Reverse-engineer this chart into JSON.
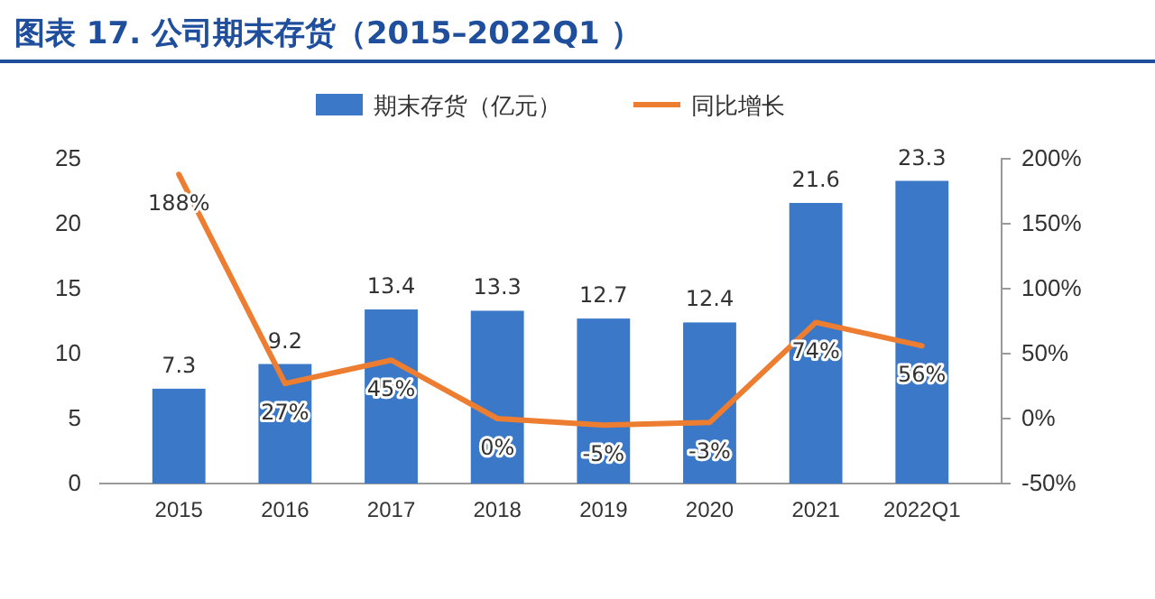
{
  "chart_data": {
    "type": "bar",
    "title": "图表 17. 公司期末存货（2015–2022Q1 ）",
    "categories": [
      "2015",
      "2016",
      "2017",
      "2018",
      "2019",
      "2020",
      "2021",
      "2022Q1"
    ],
    "series": [
      {
        "name": "期末存货（亿元）",
        "color": "#3b78c8",
        "values": [
          7.3,
          9.2,
          13.4,
          13.3,
          12.7,
          12.4,
          21.6,
          23.3
        ]
      },
      {
        "name": "同比增长",
        "type": "line",
        "axis": "y2",
        "color": "#ed7d31",
        "values": [
          188,
          27,
          45,
          0,
          -5,
          -3,
          74,
          56
        ],
        "value_labels": [
          "188%",
          "27%",
          "45%",
          "0%",
          "-5%",
          "-3%",
          "74%",
          "56%"
        ]
      }
    ],
    "ylim": [
      0,
      25
    ],
    "yticks": [
      0,
      5,
      10,
      15,
      20,
      25
    ],
    "y2lim": [
      -50,
      200
    ],
    "y2ticks": [
      {
        "value": -50,
        "label": "-50%"
      },
      {
        "value": 0,
        "label": "0%"
      },
      {
        "value": 50,
        "label": "50%"
      },
      {
        "value": 100,
        "label": "100%"
      },
      {
        "value": 150,
        "label": "150%"
      },
      {
        "value": 200,
        "label": "200%"
      }
    ],
    "data_labels": true,
    "legend": "top",
    "grid": false
  }
}
